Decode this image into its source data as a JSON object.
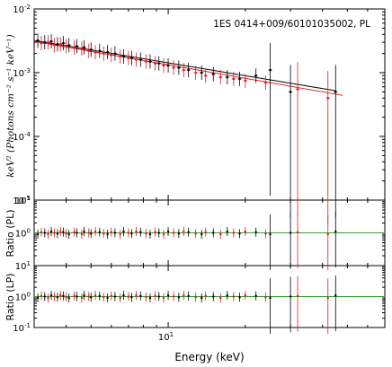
{
  "chart_data": [
    {
      "type": "scatter",
      "panel": "spectrum",
      "annotation": "1ES 0414+009/60101035002, PL",
      "ylabel": "keV² (Photons cm⁻² s⁻¹ keV⁻¹)",
      "yscale": "log",
      "xscale": "log",
      "xlim": [
        3,
        70
      ],
      "ylim": [
        1e-05,
        0.01
      ],
      "yticklabels": [
        "10-5",
        "10-4",
        "10-3",
        "10-2"
      ],
      "model_lines": [
        {
          "color": "#000000",
          "x": [
            3,
            45
          ],
          "y": [
            0.0032,
            0.00052
          ]
        },
        {
          "color": "#e0191f",
          "x": [
            3,
            48
          ],
          "y": [
            0.0031,
            0.00044
          ]
        }
      ],
      "series": [
        {
          "color": "#000000",
          "x": [
            3.1,
            3.3,
            3.5,
            3.7,
            3.9,
            4.1,
            4.4,
            4.7,
            5.0,
            5.4,
            5.8,
            6.2,
            6.7,
            7.2,
            7.8,
            8.5,
            9.2,
            10.0,
            11.0,
            12.0,
            13.5,
            15.0,
            17.0,
            19.0,
            22.0,
            25.0,
            30.0,
            45.0
          ],
          "y": [
            0.0032,
            0.003,
            0.0031,
            0.0028,
            0.0029,
            0.0027,
            0.0026,
            0.0025,
            0.0023,
            0.0022,
            0.0021,
            0.002,
            0.0018,
            0.0017,
            0.0016,
            0.0015,
            0.0014,
            0.0013,
            0.0012,
            0.0011,
            0.001,
            0.00095,
            0.00085,
            0.0008,
            0.0009,
            0.0011,
            0.0005,
            0.0005
          ]
        },
        {
          "color": "#e0191f",
          "x": [
            3.2,
            3.4,
            3.6,
            3.8,
            4.0,
            4.3,
            4.6,
            4.9,
            5.2,
            5.6,
            6.0,
            6.5,
            7.0,
            7.5,
            8.2,
            8.9,
            9.6,
            10.5,
            11.5,
            12.8,
            14.0,
            16.0,
            18.0,
            20.0,
            24.0,
            32.0,
            42.0
          ],
          "y": [
            0.0029,
            0.003,
            0.0027,
            0.0028,
            0.0026,
            0.0025,
            0.0024,
            0.0022,
            0.0021,
            0.002,
            0.0019,
            0.0018,
            0.0017,
            0.0016,
            0.0015,
            0.0014,
            0.0013,
            0.0012,
            0.0011,
            0.001,
            0.0009,
            0.00085,
            0.0008,
            0.00075,
            0.0007,
            0.00055,
            0.0004
          ]
        }
      ]
    },
    {
      "type": "scatter",
      "panel": "ratio-pl",
      "ylabel": "Ratio (PL)",
      "yscale": "log",
      "ylim": [
        0.1,
        10
      ],
      "yticklabels": [
        "100",
        "101"
      ],
      "reference_line": {
        "y": 1,
        "color": "#3a9a3a"
      }
    },
    {
      "type": "scatter",
      "panel": "ratio-lp",
      "ylabel": "Ratio (LP)",
      "xlabel": "Energy (keV)",
      "yscale": "log",
      "ylim": [
        0.1,
        10
      ],
      "yticklabels": [
        "10-1",
        "100",
        "101"
      ],
      "xticklabels": [
        "101"
      ],
      "reference_line": {
        "y": 1,
        "color": "#3a9a3a"
      }
    }
  ]
}
